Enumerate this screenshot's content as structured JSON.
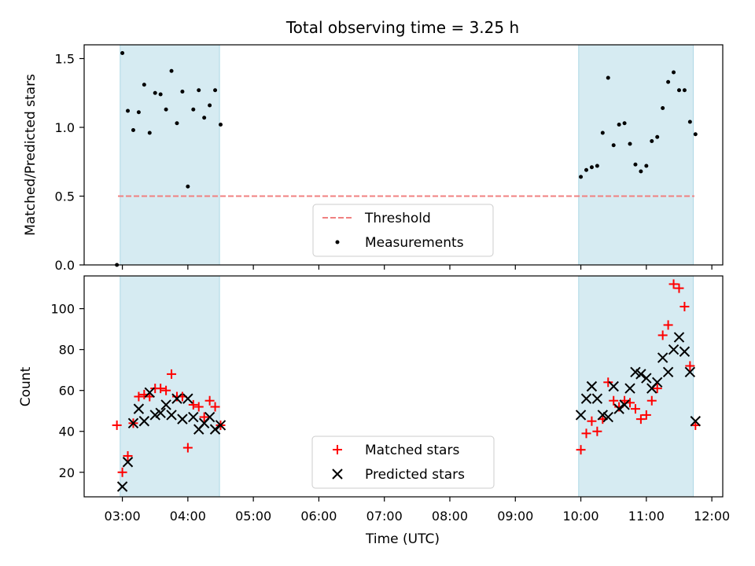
{
  "chart_data": [
    {
      "type": "scatter",
      "title": "Total observing time = 3.25 h",
      "xlabel": "",
      "ylabel": "Matched/Predicted stars",
      "ylim": [
        0,
        1.6
      ],
      "yticks": [
        "0.0",
        "0.5",
        "1.0",
        "1.5"
      ],
      "threshold": {
        "name": "Threshold",
        "value": 0.5,
        "x_start": "02:56",
        "x_end": "11:44",
        "color": "#f08080"
      },
      "observing_windows": [
        [
          "02:58",
          "04:29"
        ],
        [
          "09:58",
          "11:43"
        ]
      ],
      "series": [
        {
          "name": "Measurements",
          "color": "#000000",
          "marker": "dot",
          "points": [
            [
              "02:55",
              0.0
            ],
            [
              "03:00",
              1.54
            ],
            [
              "03:05",
              1.12
            ],
            [
              "03:10",
              0.98
            ],
            [
              "03:15",
              1.11
            ],
            [
              "03:20",
              1.31
            ],
            [
              "03:25",
              0.96
            ],
            [
              "03:30",
              1.25
            ],
            [
              "03:35",
              1.24
            ],
            [
              "03:40",
              1.13
            ],
            [
              "03:45",
              1.41
            ],
            [
              "03:50",
              1.03
            ],
            [
              "03:55",
              1.26
            ],
            [
              "04:00",
              0.57
            ],
            [
              "04:05",
              1.13
            ],
            [
              "04:10",
              1.27
            ],
            [
              "04:15",
              1.07
            ],
            [
              "04:20",
              1.16
            ],
            [
              "04:25",
              1.27
            ],
            [
              "04:30",
              1.02
            ],
            [
              "10:00",
              0.64
            ],
            [
              "10:05",
              0.69
            ],
            [
              "10:10",
              0.71
            ],
            [
              "10:15",
              0.72
            ],
            [
              "10:20",
              0.96
            ],
            [
              "10:25",
              1.36
            ],
            [
              "10:30",
              0.87
            ],
            [
              "10:35",
              1.02
            ],
            [
              "10:40",
              1.03
            ],
            [
              "10:45",
              0.88
            ],
            [
              "10:50",
              0.73
            ],
            [
              "10:55",
              0.68
            ],
            [
              "11:00",
              0.72
            ],
            [
              "11:05",
              0.9
            ],
            [
              "11:10",
              0.93
            ],
            [
              "11:15",
              1.14
            ],
            [
              "11:20",
              1.33
            ],
            [
              "11:25",
              1.4
            ],
            [
              "11:30",
              1.27
            ],
            [
              "11:35",
              1.27
            ],
            [
              "11:40",
              1.04
            ],
            [
              "11:45",
              0.95
            ]
          ]
        }
      ],
      "legend": {
        "position": "lower center",
        "entries": [
          "Threshold",
          "Measurements"
        ]
      }
    },
    {
      "type": "scatter",
      "title": "",
      "xlabel": "Time (UTC)",
      "ylabel": "Count",
      "ylim": [
        8,
        116
      ],
      "yticks": [
        "20",
        "40",
        "60",
        "80",
        "100"
      ],
      "xlim": [
        "02:25",
        "12:10"
      ],
      "xticks": [
        "03:00",
        "04:00",
        "05:00",
        "06:00",
        "07:00",
        "08:00",
        "09:00",
        "10:00",
        "11:00",
        "12:00"
      ],
      "observing_windows": [
        [
          "02:58",
          "04:29"
        ],
        [
          "09:58",
          "11:43"
        ]
      ],
      "series": [
        {
          "name": "Matched stars",
          "color": "#ff0000",
          "marker": "plus",
          "points": [
            [
              "02:55",
              43
            ],
            [
              "03:00",
              20
            ],
            [
              "03:05",
              28
            ],
            [
              "03:10",
              44
            ],
            [
              "03:15",
              57
            ],
            [
              "03:20",
              58
            ],
            [
              "03:25",
              57
            ],
            [
              "03:30",
              61
            ],
            [
              "03:35",
              61
            ],
            [
              "03:40",
              60
            ],
            [
              "03:45",
              68
            ],
            [
              "03:50",
              57
            ],
            [
              "03:55",
              57
            ],
            [
              "04:00",
              32
            ],
            [
              "04:05",
              53
            ],
            [
              "04:10",
              52
            ],
            [
              "04:15",
              47
            ],
            [
              "04:20",
              55
            ],
            [
              "04:25",
              52
            ],
            [
              "04:30",
              43
            ],
            [
              "10:00",
              31
            ],
            [
              "10:05",
              39
            ],
            [
              "10:10",
              45
            ],
            [
              "10:15",
              40
            ],
            [
              "10:20",
              46
            ],
            [
              "10:25",
              64
            ],
            [
              "10:30",
              55
            ],
            [
              "10:35",
              52
            ],
            [
              "10:40",
              55
            ],
            [
              "10:45",
              54
            ],
            [
              "10:50",
              51
            ],
            [
              "10:55",
              46
            ],
            [
              "11:00",
              48
            ],
            [
              "11:05",
              55
            ],
            [
              "11:10",
              61
            ],
            [
              "11:15",
              87
            ],
            [
              "11:20",
              92
            ],
            [
              "11:25",
              112
            ],
            [
              "11:30",
              110
            ],
            [
              "11:35",
              101
            ],
            [
              "11:40",
              72
            ],
            [
              "11:45",
              43
            ]
          ]
        },
        {
          "name": "Predicted stars",
          "color": "#000000",
          "marker": "x",
          "points": [
            [
              "03:00",
              13
            ],
            [
              "03:05",
              25
            ],
            [
              "03:10",
              44
            ],
            [
              "03:15",
              51
            ],
            [
              "03:20",
              45
            ],
            [
              "03:25",
              59
            ],
            [
              "03:30",
              48
            ],
            [
              "03:35",
              49
            ],
            [
              "03:40",
              53
            ],
            [
              "03:45",
              48
            ],
            [
              "03:50",
              56
            ],
            [
              "03:55",
              46
            ],
            [
              "04:00",
              56
            ],
            [
              "04:05",
              47
            ],
            [
              "04:10",
              41
            ],
            [
              "04:15",
              44
            ],
            [
              "04:20",
              47
            ],
            [
              "04:25",
              41
            ],
            [
              "04:30",
              43
            ],
            [
              "10:00",
              48
            ],
            [
              "10:05",
              56
            ],
            [
              "10:10",
              62
            ],
            [
              "10:15",
              56
            ],
            [
              "10:20",
              48
            ],
            [
              "10:25",
              47
            ],
            [
              "10:30",
              62
            ],
            [
              "10:35",
              51
            ],
            [
              "10:40",
              53
            ],
            [
              "10:45",
              61
            ],
            [
              "10:50",
              69
            ],
            [
              "10:55",
              68
            ],
            [
              "11:00",
              66
            ],
            [
              "11:05",
              61
            ],
            [
              "11:10",
              64
            ],
            [
              "11:15",
              76
            ],
            [
              "11:20",
              69
            ],
            [
              "11:25",
              80
            ],
            [
              "11:30",
              86
            ],
            [
              "11:35",
              79
            ],
            [
              "11:40",
              69
            ],
            [
              "11:45",
              45
            ]
          ]
        }
      ],
      "legend": {
        "position": "lower center",
        "entries": [
          "Matched stars",
          "Predicted stars"
        ]
      }
    }
  ],
  "colors": {
    "window_fill": "#add8e6",
    "window_alpha": 0.5,
    "threshold": "#f08080"
  }
}
